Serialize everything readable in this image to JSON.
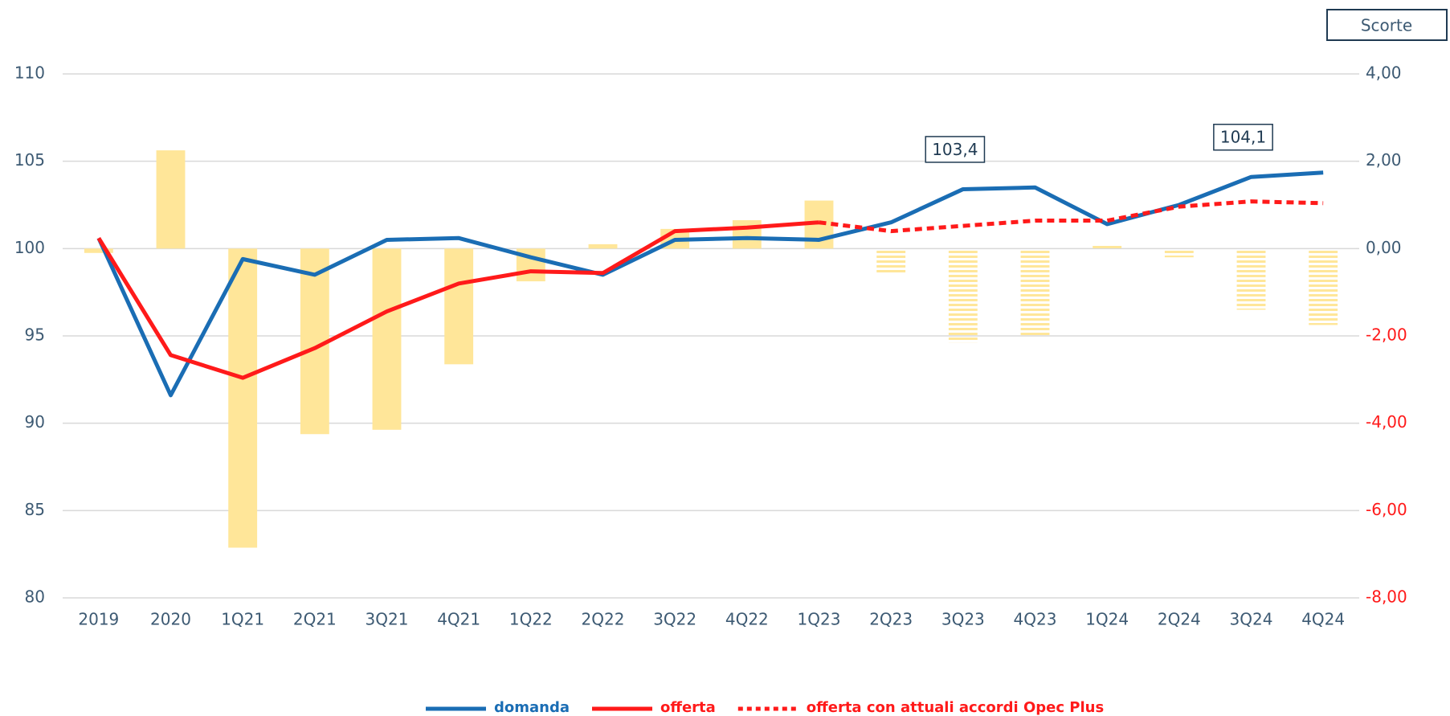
{
  "chart_data": {
    "type": "bar-line",
    "categories": [
      "2019",
      "2020",
      "1Q21",
      "2Q21",
      "3Q21",
      "4Q21",
      "1Q22",
      "2Q22",
      "3Q22",
      "4Q22",
      "1Q23",
      "2Q23",
      "3Q23",
      "4Q23",
      "1Q24",
      "2Q24",
      "3Q24",
      "4Q24"
    ],
    "ylim": [
      80,
      110
    ],
    "yticks": [
      80,
      85,
      90,
      95,
      100,
      105,
      110
    ],
    "y2label": "Scorte",
    "y2lim": [
      -8,
      4
    ],
    "y2ticks": [
      {
        "value": -8,
        "label": "-8,00"
      },
      {
        "value": -6,
        "label": "-6,00"
      },
      {
        "value": -4,
        "label": "-4,00"
      },
      {
        "value": -2,
        "label": "-2,00"
      },
      {
        "value": 0,
        "label": "0,00"
      },
      {
        "value": 2,
        "label": "2,00"
      },
      {
        "value": 4,
        "label": "4,00"
      }
    ],
    "y2_negative_color": "#ff1a1a",
    "grid": true,
    "legend": "bottom",
    "bars": {
      "axis": "y2",
      "color": "#ffe699",
      "hatch_from_category": "2Q23",
      "values": [
        -0.1,
        2.25,
        -6.85,
        -4.25,
        -4.15,
        -2.65,
        -0.75,
        0.1,
        0.45,
        0.65,
        1.1,
        -0.6,
        -2.15,
        -2.0,
        0.1,
        -0.2,
        -1.4,
        -1.75
      ]
    },
    "series": [
      {
        "name": "domanda",
        "color": "#1a6db4",
        "dash": "solid",
        "values": [
          100.6,
          91.6,
          99.4,
          98.5,
          100.5,
          100.6,
          99.5,
          98.5,
          100.5,
          100.6,
          100.5,
          101.5,
          103.4,
          103.5,
          101.4,
          102.5,
          104.1,
          104.35
        ],
        "value_labels": [
          null,
          null,
          null,
          null,
          null,
          null,
          null,
          null,
          null,
          null,
          null,
          null,
          "103,4",
          null,
          null,
          null,
          "104,1",
          null
        ]
      },
      {
        "name": "offerta",
        "color": "#ff1a1a",
        "dash": "solid",
        "values": [
          100.6,
          93.9,
          92.6,
          94.3,
          96.4,
          98.0,
          98.7,
          98.6,
          101.0,
          101.2,
          101.5,
          null,
          null,
          null,
          null,
          null,
          null,
          null
        ]
      },
      {
        "name": "offerta con attuali accordi Opec Plus",
        "color": "#ff1a1a",
        "dash": "dotted",
        "values": [
          null,
          null,
          null,
          null,
          null,
          null,
          null,
          null,
          null,
          null,
          101.5,
          101.0,
          101.3,
          101.6,
          101.6,
          102.4,
          102.7,
          102.6
        ]
      }
    ]
  }
}
